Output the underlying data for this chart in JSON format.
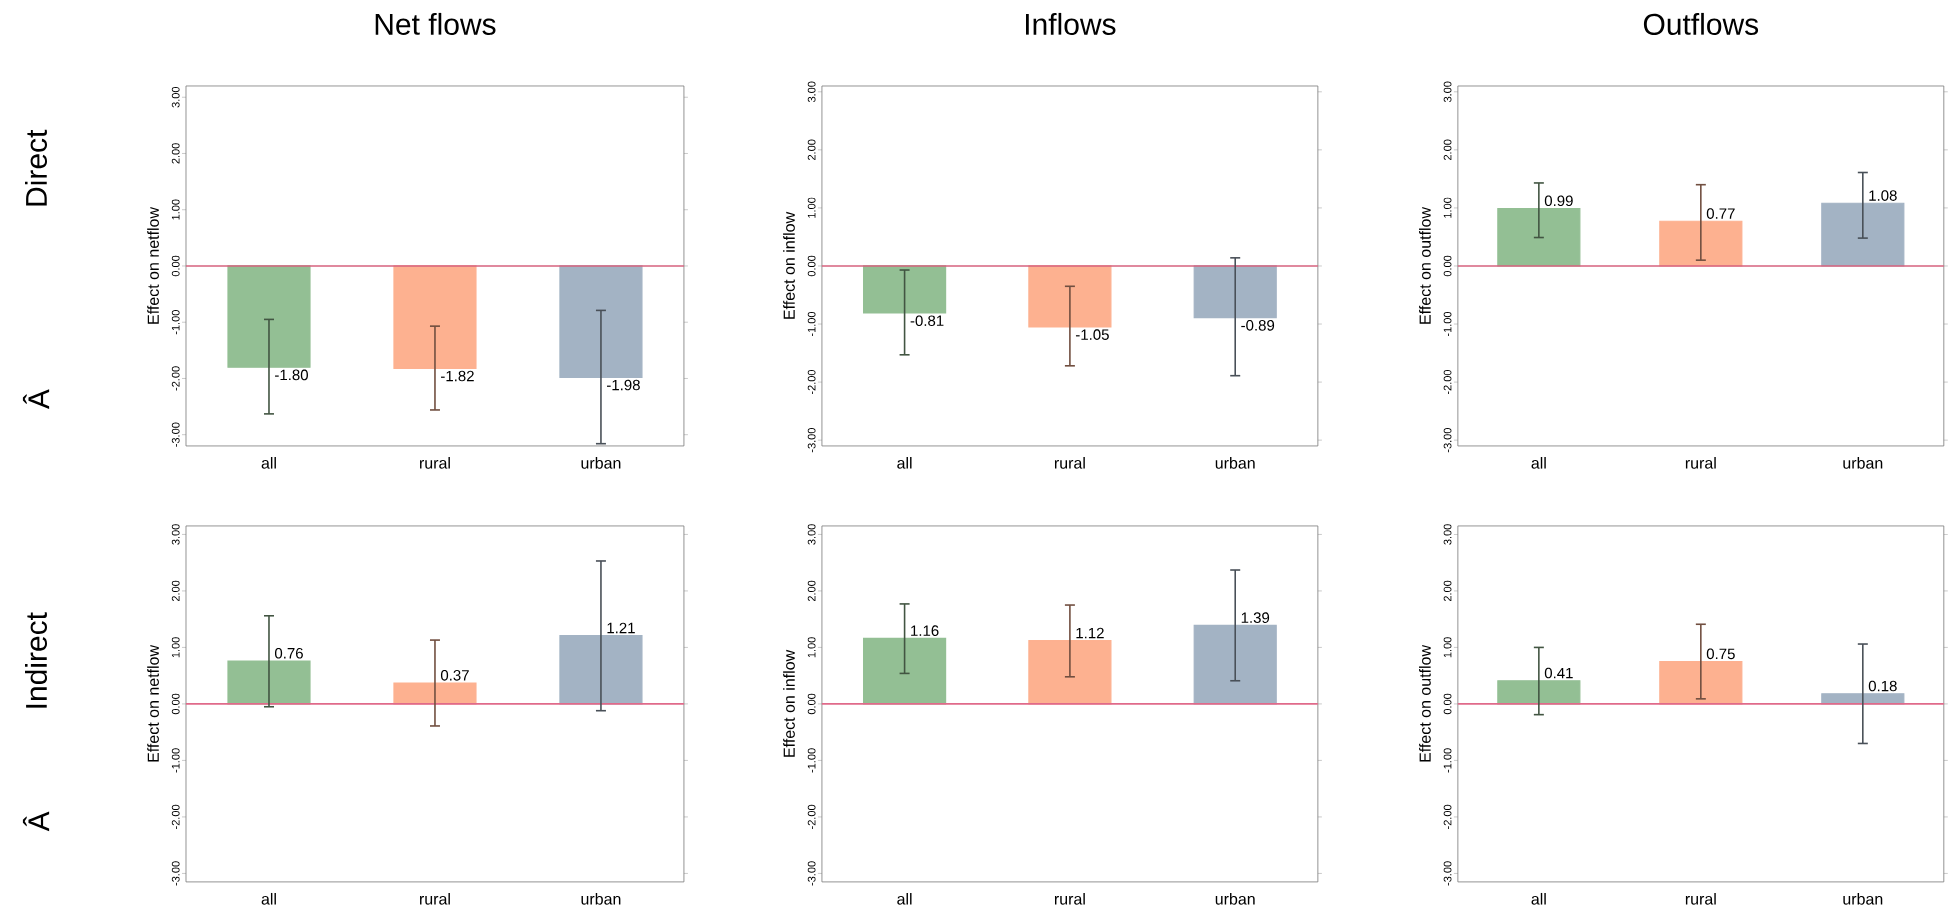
{
  "chart_data": [
    {
      "type": "bar",
      "title": "Net flows",
      "ylabel": "Effect on netflow",
      "annotations": [
        "Direct",
        "Â"
      ],
      "categories": [
        "all",
        "rural",
        "urban"
      ],
      "values": [
        -1.8,
        -1.82,
        -1.98
      ],
      "value_labels": [
        "-1.80",
        "-1.82",
        "-1.98"
      ],
      "colors": [
        "#93bf94",
        "#fdb190",
        "#a3b3c4"
      ],
      "errors": [
        [
          -2.63,
          -0.95
        ],
        [
          -2.56,
          -1.07
        ],
        [
          -3.16,
          -0.79
        ]
      ],
      "ylim": [
        -3.2,
        3.2
      ],
      "yticks": [
        {
          "value": -3,
          "label": "-3.00"
        },
        {
          "value": -2,
          "label": "-2.00"
        },
        {
          "value": -1,
          "label": "-1.00"
        },
        {
          "value": 0,
          "label": "0.00"
        },
        {
          "value": 1,
          "label": "1.00"
        },
        {
          "value": 2,
          "label": "2.00"
        },
        {
          "value": 3,
          "label": "3.00"
        }
      ],
      "ref_lines": [
        {
          "axis": "y",
          "value": 0,
          "color": "#d6627e"
        }
      ]
    },
    {
      "type": "bar",
      "title": "Inflows",
      "ylabel": "Effect on inflow",
      "categories": [
        "all",
        "rural",
        "urban"
      ],
      "values": [
        -0.81,
        -1.05,
        -0.89
      ],
      "colors": [
        "#93bf94",
        "#fdb190",
        "#a3b3c4"
      ],
      "errors": [
        [
          -1.53,
          -0.07
        ],
        [
          -1.72,
          -0.35
        ],
        [
          -1.89,
          0.14
        ]
      ],
      "data_labels": true,
      "ylim": [
        -3.1,
        3.1
      ],
      "yticks": [
        {
          "value": -3,
          "label": "-3.00"
        },
        {
          "value": -2,
          "label": "-2.00"
        },
        {
          "value": -1,
          "label": "-1.00"
        },
        {
          "value": 0,
          "label": "0.00"
        },
        {
          "value": 1,
          "label": "1.00"
        },
        {
          "value": 2,
          "label": "2.00"
        },
        {
          "value": 3,
          "label": "3.00"
        }
      ],
      "ref_lines": [
        {
          "axis": "y",
          "value": 0,
          "color": "#d6627e"
        }
      ]
    },
    {
      "type": "bar",
      "title": "Outflows",
      "ylabel": "Effect on outflow",
      "categories": [
        "all",
        "rural",
        "urban"
      ],
      "values": [
        0.99,
        0.77,
        1.08
      ],
      "colors": [
        "#93bf94",
        "#fdb190",
        "#a3b3c4"
      ],
      "errors": [
        [
          0.49,
          1.43
        ],
        [
          0.1,
          1.4
        ],
        [
          0.48,
          1.61
        ]
      ],
      "data_labels": true,
      "ylim": [
        -3.1,
        3.1
      ],
      "yticks": [
        {
          "value": -3,
          "label": "-3.00"
        },
        {
          "value": -2,
          "label": "-2.00"
        },
        {
          "value": -1,
          "label": "-1.00"
        },
        {
          "value": 0,
          "label": "0.00"
        },
        {
          "value": 1,
          "label": "1.00"
        },
        {
          "value": 2,
          "label": "2.00"
        },
        {
          "value": 3,
          "label": "3.00"
        }
      ],
      "ref_lines": [
        {
          "axis": "y",
          "value": 0,
          "color": "#d6627e"
        }
      ]
    },
    {
      "type": "bar",
      "ylabel": "Effect on netflow",
      "annotations": [
        "Indirect",
        "Â"
      ],
      "categories": [
        "all",
        "rural",
        "urban"
      ],
      "values": [
        0.76,
        0.37,
        1.21
      ],
      "colors": [
        "#93bf94",
        "#fdb190",
        "#a3b3c4"
      ],
      "errors": [
        [
          -0.05,
          1.56
        ],
        [
          -0.39,
          1.13
        ],
        [
          -0.12,
          2.53
        ]
      ],
      "data_labels": true,
      "ylim": [
        -3.15,
        3.15
      ],
      "yticks": [
        {
          "value": -3,
          "label": "-3.00"
        },
        {
          "value": -2,
          "label": "-2.00"
        },
        {
          "value": -1,
          "label": "-1.00"
        },
        {
          "value": 0,
          "label": "0.00"
        },
        {
          "value": 1,
          "label": "1.00"
        },
        {
          "value": 2,
          "label": "2.00"
        },
        {
          "value": 3,
          "label": "3.00"
        }
      ],
      "ref_lines": [
        {
          "axis": "y",
          "value": 0,
          "color": "#e06a8a"
        }
      ]
    },
    {
      "type": "bar",
      "ylabel": "Effect on inflow",
      "categories": [
        "all",
        "rural",
        "urban"
      ],
      "values": [
        1.16,
        1.12,
        1.39
      ],
      "colors": [
        "#93bf94",
        "#fdb190",
        "#a3b3c4"
      ],
      "errors": [
        [
          0.54,
          1.77
        ],
        [
          0.48,
          1.75
        ],
        [
          0.41,
          2.37
        ]
      ],
      "data_labels": true,
      "ylim": [
        -3.15,
        3.15
      ],
      "yticks": [
        {
          "value": -3,
          "label": "-3.00"
        },
        {
          "value": -2,
          "label": "-2.00"
        },
        {
          "value": -1,
          "label": "-1.00"
        },
        {
          "value": 0,
          "label": "0.00"
        },
        {
          "value": 1,
          "label": "1.00"
        },
        {
          "value": 2,
          "label": "2.00"
        },
        {
          "value": 3,
          "label": "3.00"
        }
      ],
      "ref_lines": [
        {
          "axis": "y",
          "value": 0,
          "color": "#e06a8a"
        }
      ]
    },
    {
      "type": "bar",
      "ylabel": "Effect on outflow",
      "categories": [
        "all",
        "rural",
        "urban"
      ],
      "values": [
        0.41,
        0.75,
        0.18
      ],
      "colors": [
        "#93bf94",
        "#fdb190",
        "#a3b3c4"
      ],
      "errors": [
        [
          -0.19,
          1.0
        ],
        [
          0.09,
          1.41
        ],
        [
          -0.7,
          1.06
        ]
      ],
      "data_labels": true,
      "ylim": [
        -3.15,
        3.15
      ],
      "yticks": [
        {
          "value": -3,
          "label": "-3.00"
        },
        {
          "value": -2,
          "label": "-2.00"
        },
        {
          "value": -1,
          "label": "-1.00"
        },
        {
          "value": 0,
          "label": "0.00"
        },
        {
          "value": 1,
          "label": "1.00"
        },
        {
          "value": 2,
          "label": "2.00"
        },
        {
          "value": 3,
          "label": "3.00"
        }
      ],
      "ref_lines": [
        {
          "axis": "y",
          "value": 0,
          "color": "#e06a8a"
        }
      ]
    }
  ]
}
